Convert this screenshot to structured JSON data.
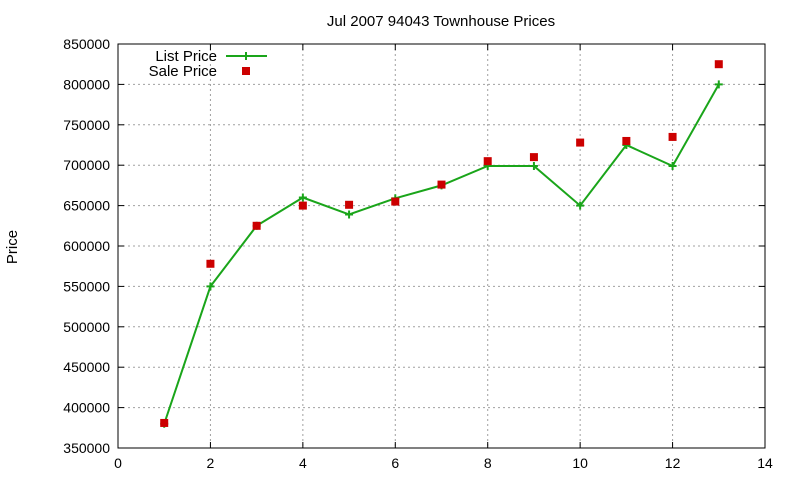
{
  "chart_data": {
    "type": "line",
    "title": "Jul 2007 94043 Townhouse Prices",
    "xlabel": "",
    "ylabel": "Price",
    "xlim": [
      0,
      14
    ],
    "ylim": [
      350000,
      850000
    ],
    "xticks": [
      0,
      2,
      4,
      6,
      8,
      10,
      12,
      14
    ],
    "yticks": [
      350000,
      400000,
      450000,
      500000,
      550000,
      600000,
      650000,
      700000,
      750000,
      800000,
      850000
    ],
    "grid": true,
    "legend": "top-left",
    "series": [
      {
        "name": "List Price",
        "style": "line-with-plus-markers",
        "color": "#1aa51a",
        "x": [
          1,
          2,
          3,
          4,
          5,
          6,
          7,
          8,
          9,
          10,
          11,
          12,
          13
        ],
        "y": [
          380000,
          550000,
          625000,
          660000,
          639000,
          659000,
          675000,
          699000,
          699000,
          650000,
          725000,
          699000,
          800000
        ]
      },
      {
        "name": "Sale Price",
        "style": "square-markers",
        "color": "#cc0000",
        "x": [
          1,
          2,
          3,
          4,
          5,
          6,
          7,
          8,
          9,
          10,
          11,
          12,
          13
        ],
        "y": [
          381000,
          578000,
          625000,
          650000,
          651000,
          655000,
          676000,
          705000,
          710000,
          728000,
          730000,
          735000,
          825000
        ]
      }
    ]
  }
}
